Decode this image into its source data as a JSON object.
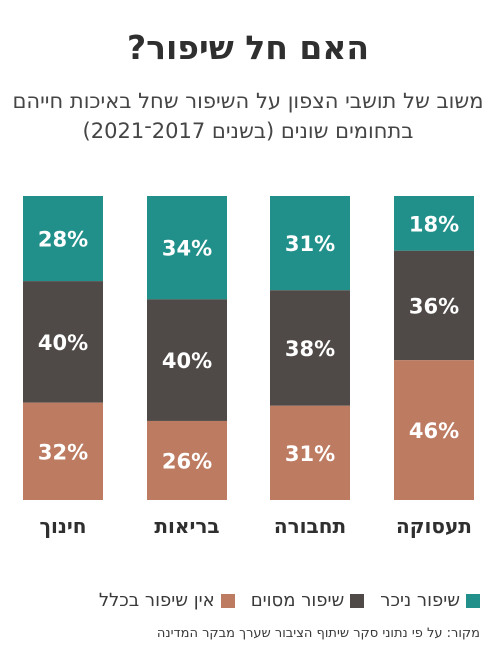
{
  "title": "האם חל שיפור?",
  "subtitle": "משוב של תושבי הצפון על השיפור שחל באיכות חייהם בתחומים שונים (בשנים 2017־2021)",
  "chart_data": {
    "type": "bar",
    "stacked": true,
    "percent": true,
    "categories": [
      "תעסוקה",
      "תחבורה",
      "בריאות",
      "חינוך"
    ],
    "series": [
      {
        "name": "שיפור ניכר",
        "color": "#22908a",
        "values": [
          18,
          31,
          34,
          28
        ]
      },
      {
        "name": "שיפור מסוים",
        "color": "#4f4a47",
        "values": [
          36,
          38,
          40,
          40
        ]
      },
      {
        "name": "אין שיפור בכלל",
        "color": "#bd7b62",
        "values": [
          46,
          31,
          26,
          32
        ]
      }
    ],
    "legend_position": "bottom"
  },
  "legend": [
    {
      "label": "שיפור ניכר",
      "color": "#22908a"
    },
    {
      "label": "שיפור מסוים",
      "color": "#4f4a47"
    },
    {
      "label": "אין שיפור בכלל",
      "color": "#bd7b62"
    }
  ],
  "source": "מקור: על פי נתוני סקר שיתוף הציבור שערך מבקר המדינה"
}
